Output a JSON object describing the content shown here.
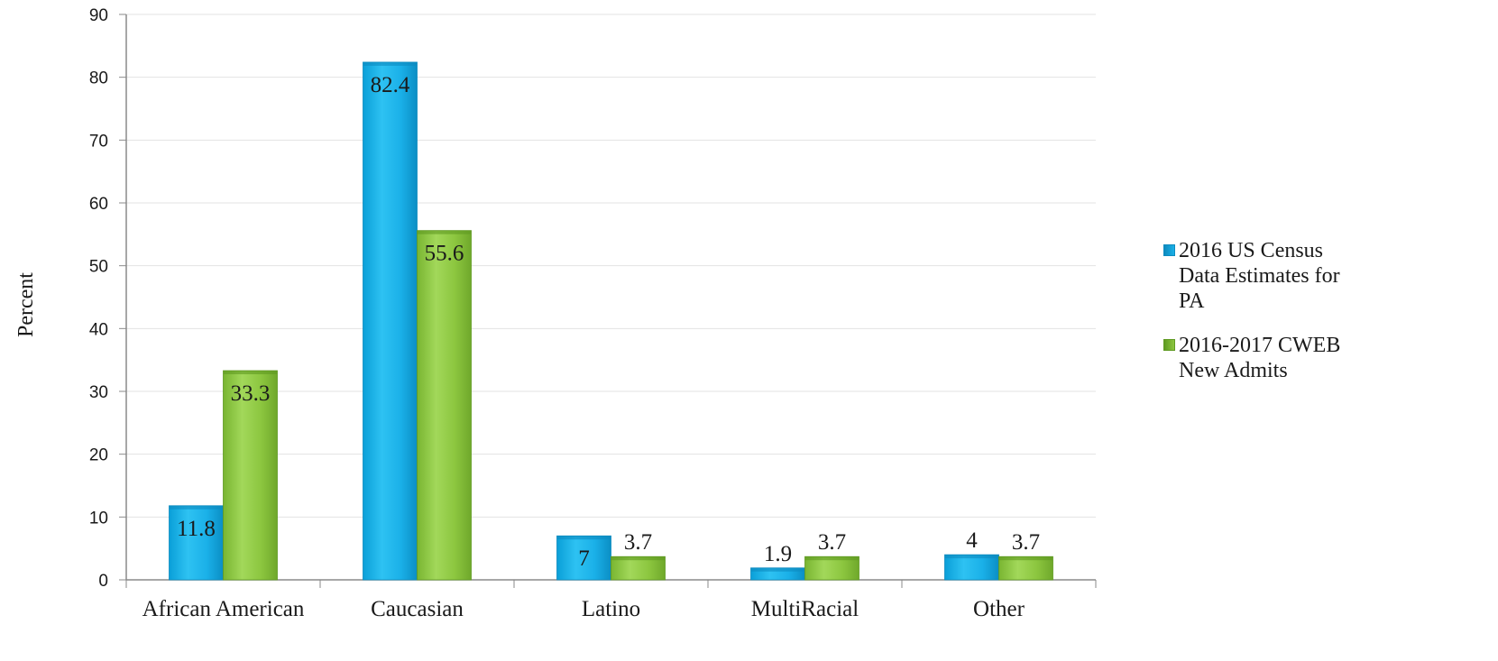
{
  "chart_data": {
    "type": "bar",
    "ylabel": "Percent",
    "xlabel": "",
    "ylim": [
      0,
      90
    ],
    "yticks": [
      0,
      10,
      20,
      30,
      40,
      50,
      60,
      70,
      80,
      90
    ],
    "grid": true,
    "legend_position": "right",
    "categories": [
      "African American",
      "Caucasian",
      "Latino",
      "MultiRacial",
      "Other"
    ],
    "series": [
      {
        "name": "2016 US Census Data Estimates for PA",
        "values": [
          11.8,
          82.4,
          7,
          1.9,
          4
        ],
        "labels": [
          "11.8",
          "82.4",
          "7",
          "1.9",
          "4"
        ],
        "color": "#1ab0e8"
      },
      {
        "name": "2016-2017 CWEB New Admits",
        "values": [
          33.3,
          55.6,
          3.7,
          3.7,
          3.7
        ],
        "labels": [
          "33.3",
          "55.6",
          "3.7",
          "3.7",
          "3.7"
        ],
        "color": "#8cc63f"
      }
    ]
  }
}
